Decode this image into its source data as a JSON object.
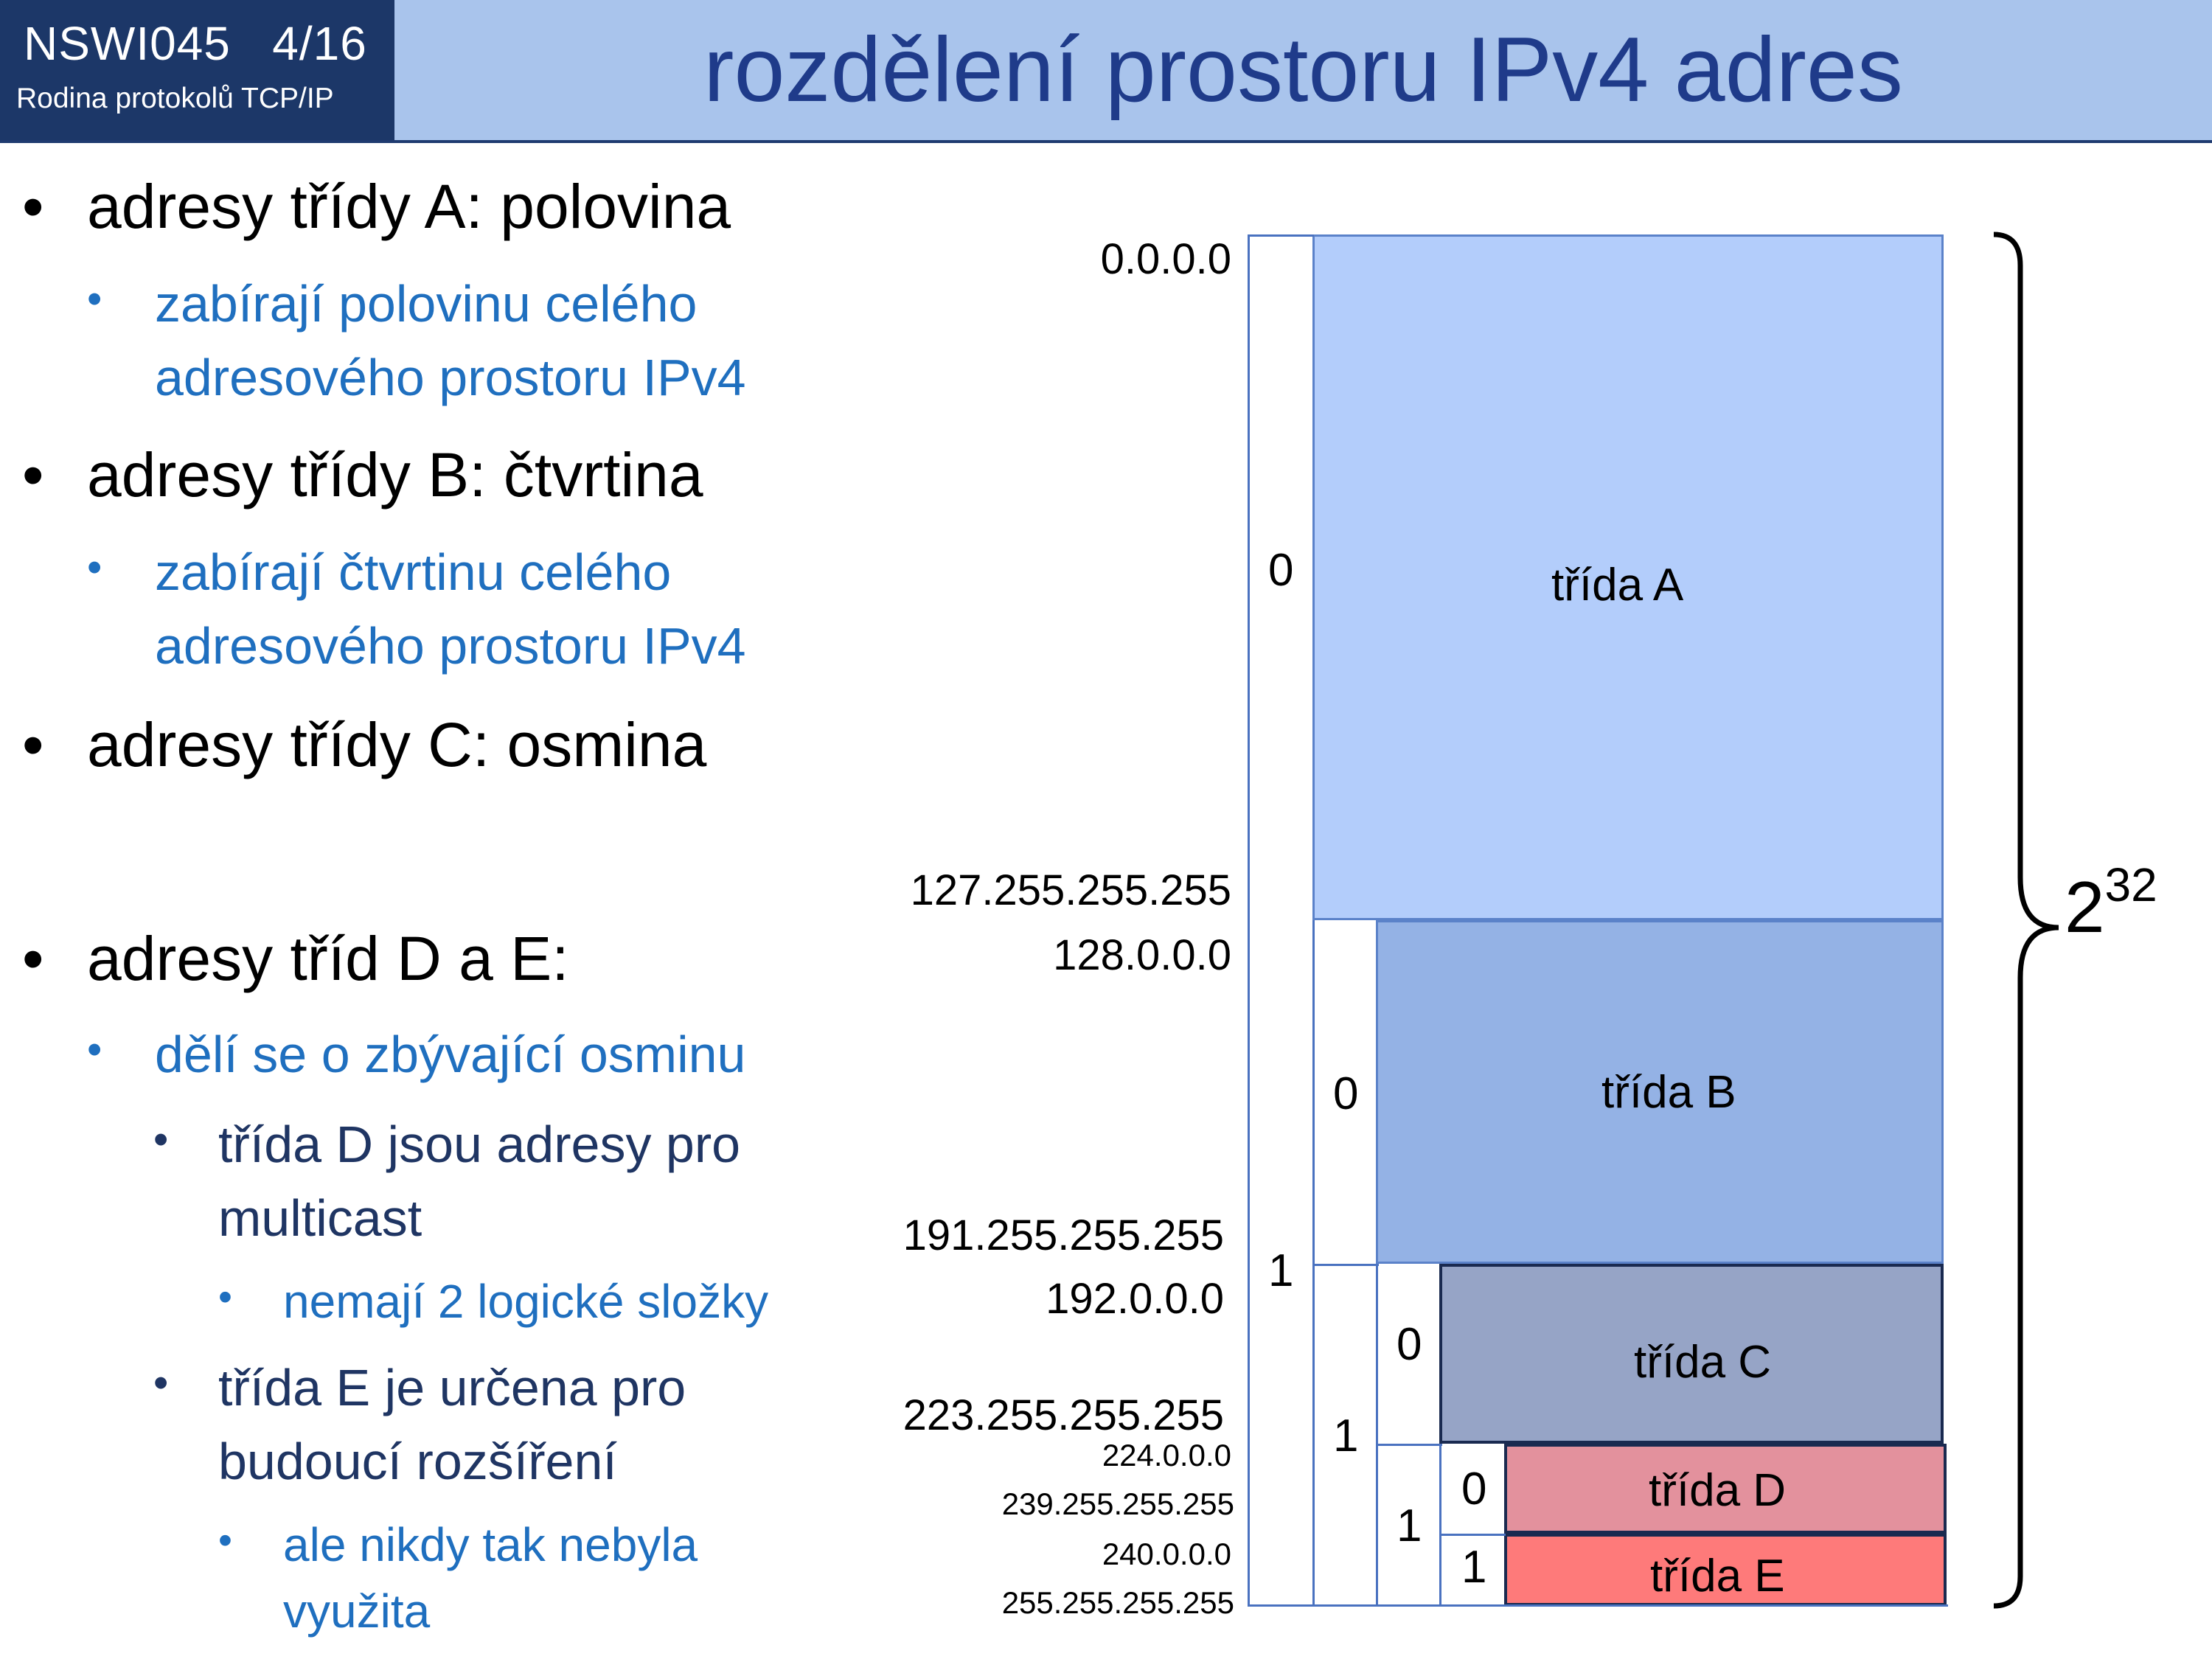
{
  "header": {
    "course_code": "NSWI045",
    "page": "4/16",
    "course_name": "Rodina protokolů TCP/IP",
    "title": "rozdělení prostoru IPv4 adres"
  },
  "bullets": {
    "a": "adresy třídy A: polovina",
    "a_sub_1": "zabírají polovinu celého",
    "a_sub_2": "adresového prostoru IPv4",
    "b": "adresy třídy B: čtvrtina",
    "b_sub_1": "zabírají čtvrtinu celého",
    "b_sub_2": "adresového prostoru IPv4",
    "c": "adresy třídy C: osmina",
    "de": "adresy tříd D a E:",
    "de_sub": "dělí se o zbývající osminu",
    "d_1": "třída D jsou adresy pro",
    "d_2": "multicast",
    "d_sub": "nemají 2 logické složky",
    "e_1": "třída E je určena pro",
    "e_2": "budoucí rozšíření",
    "e_sub_1": "ale nikdy tak nebyla",
    "e_sub_2": "využita",
    "bullet_char": "•"
  },
  "diagram": {
    "classes": {
      "a": {
        "label": "třída A",
        "color": "#b3cdfb"
      },
      "b": {
        "label": "třída B",
        "color": "#94b2e5"
      },
      "c": {
        "label": "třída C",
        "color": "#96a4c6"
      },
      "d": {
        "label": "třída D",
        "color": "#e3919d"
      },
      "e": {
        "label": "třída E",
        "color": "#fe7a7a"
      }
    },
    "bits": {
      "lvl1_zero": "0",
      "lvl1_one": "1",
      "lvl2_zero": "0",
      "lvl2_one": "1",
      "lvl3_zero": "0",
      "lvl3_one": "1",
      "lvl4_zero": "0",
      "lvl4_one": "1"
    },
    "addresses": {
      "a_start": "0.0.0.0",
      "a_end": "127.255.255.255",
      "b_start": "128.0.0.0",
      "b_end": "191.255.255.255",
      "c_start": "192.0.0.0",
      "c_end": "223.255.255.255",
      "d_start": "224.0.0.0",
      "d_end": "239.255.255.255",
      "e_start": "240.0.0.0",
      "e_end": "255.255.255.255"
    },
    "total_base": "2",
    "total_exp": "32"
  }
}
